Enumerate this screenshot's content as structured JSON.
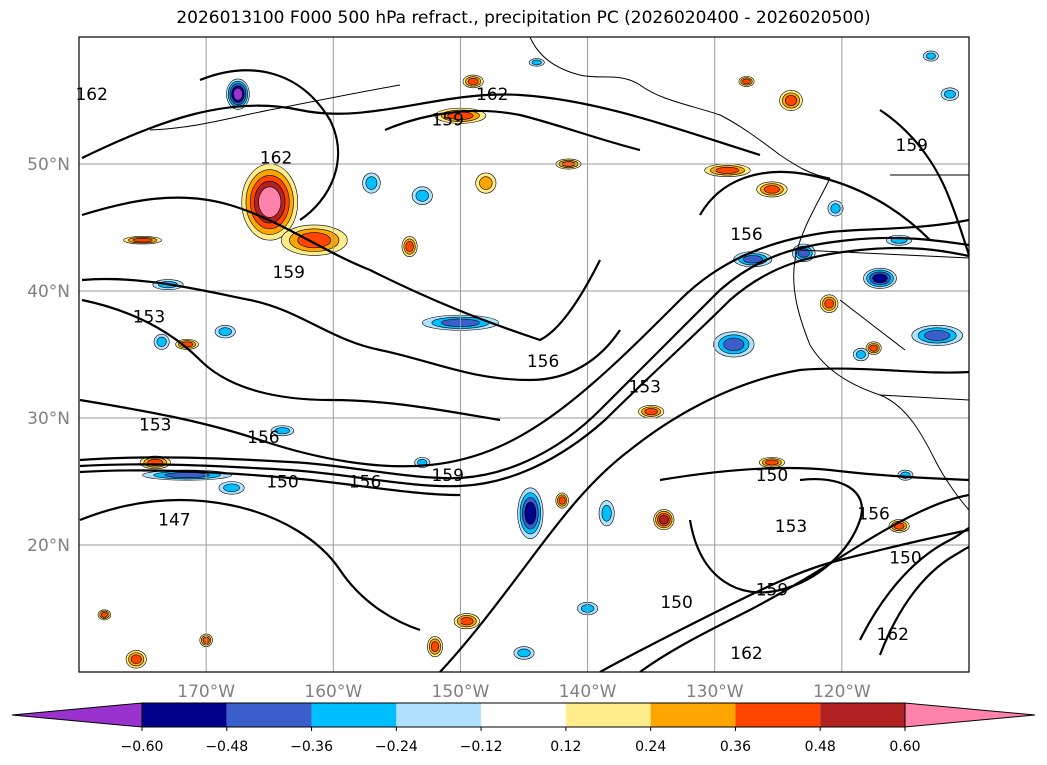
{
  "chart_data": {
    "type": "heatmap",
    "title": "2026013100 F000 500 hPa refract., precipitation PC (2026020400 - 2026020500)",
    "lat_ticks": [
      {
        "value": 50,
        "label": "50°N"
      },
      {
        "value": 40,
        "label": "40°N"
      },
      {
        "value": 30,
        "label": "30°N"
      },
      {
        "value": 20,
        "label": "20°N"
      }
    ],
    "lon_ticks": [
      {
        "value": -170,
        "label": "170°W"
      },
      {
        "value": -160,
        "label": "160°W"
      },
      {
        "value": -150,
        "label": "150°W"
      },
      {
        "value": -140,
        "label": "140°W"
      },
      {
        "value": -130,
        "label": "130°W"
      },
      {
        "value": -120,
        "label": "120°W"
      }
    ],
    "lon_range": [
      -180,
      -110
    ],
    "lat_range": [
      10,
      60
    ],
    "grid": true,
    "colorbar": {
      "bins": [
        {
          "color": "#9a32cd"
        },
        {
          "color": "#00008b"
        },
        {
          "color": "#3a5fcd"
        },
        {
          "color": "#00bfff"
        },
        {
          "color": "#b0e2ff"
        },
        {
          "color": "#ffffff"
        },
        {
          "color": "#ffec8b"
        },
        {
          "color": "#ffa500"
        },
        {
          "color": "#ff4500"
        },
        {
          "color": "#b22222"
        },
        {
          "color": "#ff82ab"
        }
      ],
      "tick_labels": [
        "−0.60",
        "−0.48",
        "−0.36",
        "−0.24",
        "−0.12",
        "0.12",
        "0.24",
        "0.36",
        "0.48",
        "0.60"
      ],
      "extend": "both"
    },
    "contour_labels": [
      {
        "text": "162",
        "lon": -179.0,
        "lat": 55.5
      },
      {
        "text": "162",
        "lon": -147.5,
        "lat": 55.5
      },
      {
        "text": "162",
        "lon": -164.5,
        "lat": 50.5
      },
      {
        "text": "159",
        "lon": -151.0,
        "lat": 53.5
      },
      {
        "text": "159",
        "lon": -114.5,
        "lat": 51.5
      },
      {
        "text": "156",
        "lon": -127.5,
        "lat": 44.5
      },
      {
        "text": "159",
        "lon": -163.5,
        "lat": 41.5
      },
      {
        "text": "153",
        "lon": -174.5,
        "lat": 38.0
      },
      {
        "text": "156",
        "lon": -143.5,
        "lat": 34.5
      },
      {
        "text": "153",
        "lon": -135.5,
        "lat": 32.5
      },
      {
        "text": "153",
        "lon": -174.0,
        "lat": 29.5
      },
      {
        "text": "156",
        "lon": -165.5,
        "lat": 28.5
      },
      {
        "text": "159",
        "lon": -151.0,
        "lat": 25.5
      },
      {
        "text": "156",
        "lon": -157.5,
        "lat": 25.0
      },
      {
        "text": "150",
        "lon": -164.0,
        "lat": 25.0
      },
      {
        "text": "147",
        "lon": -172.5,
        "lat": 22.0
      },
      {
        "text": "150",
        "lon": -125.5,
        "lat": 25.5
      },
      {
        "text": "153",
        "lon": -124.0,
        "lat": 21.5
      },
      {
        "text": "156",
        "lon": -117.5,
        "lat": 22.5
      },
      {
        "text": "150",
        "lon": -115.0,
        "lat": 19.0
      },
      {
        "text": "150",
        "lon": -133.0,
        "lat": 15.5
      },
      {
        "text": "159",
        "lon": -125.5,
        "lat": 16.5
      },
      {
        "text": "162",
        "lon": -127.5,
        "lat": 11.5
      },
      {
        "text": "162",
        "lon": -116.0,
        "lat": 13.0
      }
    ],
    "precip_cells": [
      {
        "lon": -165.0,
        "lat": 47.0,
        "rx": 2.2,
        "ry": 3.0,
        "v": 0.62
      },
      {
        "lon": -161.5,
        "lat": 44.0,
        "rx": 2.6,
        "ry": 1.2,
        "v": 0.42
      },
      {
        "lon": -167.5,
        "lat": 55.5,
        "rx": 0.9,
        "ry": 1.2,
        "v": -0.62
      },
      {
        "lon": -150.0,
        "lat": 53.8,
        "rx": 2.0,
        "ry": 0.6,
        "v": 0.42
      },
      {
        "lon": -149.0,
        "lat": 56.5,
        "rx": 0.8,
        "ry": 0.5,
        "v": 0.38
      },
      {
        "lon": -141.5,
        "lat": 50.0,
        "rx": 1.0,
        "ry": 0.4,
        "v": 0.36
      },
      {
        "lon": -148.0,
        "lat": 48.5,
        "rx": 0.8,
        "ry": 0.8,
        "v": 0.3
      },
      {
        "lon": -153.0,
        "lat": 47.5,
        "rx": 0.8,
        "ry": 0.7,
        "v": -0.36
      },
      {
        "lon": -157.0,
        "lat": 48.5,
        "rx": 0.7,
        "ry": 0.8,
        "v": -0.3
      },
      {
        "lon": -154.0,
        "lat": 43.5,
        "rx": 0.6,
        "ry": 0.8,
        "v": 0.38
      },
      {
        "lon": -150.0,
        "lat": 37.5,
        "rx": 3.0,
        "ry": 0.6,
        "v": -0.45
      },
      {
        "lon": -173.0,
        "lat": 40.5,
        "rx": 1.2,
        "ry": 0.4,
        "v": -0.36
      },
      {
        "lon": -175.0,
        "lat": 44.0,
        "rx": 1.5,
        "ry": 0.3,
        "v": 0.38
      },
      {
        "lon": -171.5,
        "lat": 35.8,
        "rx": 0.9,
        "ry": 0.4,
        "v": 0.36
      },
      {
        "lon": -173.5,
        "lat": 36.0,
        "rx": 0.6,
        "ry": 0.6,
        "v": -0.3
      },
      {
        "lon": -174.0,
        "lat": 26.5,
        "rx": 1.2,
        "ry": 0.5,
        "v": 0.42
      },
      {
        "lon": -171.5,
        "lat": 25.5,
        "rx": 3.5,
        "ry": 0.4,
        "v": -0.4
      },
      {
        "lon": -168.0,
        "lat": 24.5,
        "rx": 1.0,
        "ry": 0.5,
        "v": -0.36
      },
      {
        "lon": -168.5,
        "lat": 36.8,
        "rx": 0.8,
        "ry": 0.5,
        "v": -0.3
      },
      {
        "lon": -153.0,
        "lat": 26.5,
        "rx": 0.6,
        "ry": 0.4,
        "v": -0.3
      },
      {
        "lon": -144.5,
        "lat": 22.5,
        "rx": 1.0,
        "ry": 2.0,
        "v": -0.5
      },
      {
        "lon": -142.0,
        "lat": 23.5,
        "rx": 0.5,
        "ry": 0.6,
        "v": 0.36
      },
      {
        "lon": -138.5,
        "lat": 22.5,
        "rx": 0.6,
        "ry": 1.0,
        "v": -0.36
      },
      {
        "lon": -134.0,
        "lat": 22.0,
        "rx": 0.8,
        "ry": 0.8,
        "v": 0.48
      },
      {
        "lon": -128.5,
        "lat": 35.8,
        "rx": 1.6,
        "ry": 1.0,
        "v": -0.45
      },
      {
        "lon": -127.0,
        "lat": 42.5,
        "rx": 1.5,
        "ry": 0.6,
        "v": -0.38
      },
      {
        "lon": -123.0,
        "lat": 43.0,
        "rx": 0.9,
        "ry": 0.7,
        "v": -0.45
      },
      {
        "lon": -124.0,
        "lat": 55.0,
        "rx": 0.9,
        "ry": 0.8,
        "v": 0.4
      },
      {
        "lon": -127.5,
        "lat": 56.5,
        "rx": 0.6,
        "ry": 0.4,
        "v": 0.36
      },
      {
        "lon": -129.0,
        "lat": 49.5,
        "rx": 1.8,
        "ry": 0.5,
        "v": 0.4
      },
      {
        "lon": -125.5,
        "lat": 48.0,
        "rx": 1.2,
        "ry": 0.6,
        "v": 0.38
      },
      {
        "lon": -117.0,
        "lat": 41.0,
        "rx": 1.3,
        "ry": 0.8,
        "v": -0.55
      },
      {
        "lon": -112.5,
        "lat": 36.5,
        "rx": 2.0,
        "ry": 0.8,
        "v": -0.45
      },
      {
        "lon": -121.0,
        "lat": 39.0,
        "rx": 0.7,
        "ry": 0.7,
        "v": 0.36
      },
      {
        "lon": -117.5,
        "lat": 35.5,
        "rx": 0.6,
        "ry": 0.5,
        "v": 0.36
      },
      {
        "lon": -111.5,
        "lat": 55.5,
        "rx": 0.7,
        "ry": 0.5,
        "v": -0.3
      },
      {
        "lon": -125.5,
        "lat": 26.5,
        "rx": 1.0,
        "ry": 0.4,
        "v": 0.36
      },
      {
        "lon": -115.0,
        "lat": 25.5,
        "rx": 0.6,
        "ry": 0.4,
        "v": -0.3
      },
      {
        "lon": -115.5,
        "lat": 21.5,
        "rx": 0.8,
        "ry": 0.5,
        "v": 0.4
      },
      {
        "lon": -149.5,
        "lat": 14.0,
        "rx": 1.0,
        "ry": 0.6,
        "v": 0.4
      },
      {
        "lon": -152.0,
        "lat": 12.0,
        "rx": 0.6,
        "ry": 0.8,
        "v": 0.4
      },
      {
        "lon": -145.0,
        "lat": 11.5,
        "rx": 0.8,
        "ry": 0.5,
        "v": -0.3
      },
      {
        "lon": -175.5,
        "lat": 11.0,
        "rx": 0.8,
        "ry": 0.7,
        "v": 0.42
      },
      {
        "lon": -178.0,
        "lat": 14.5,
        "rx": 0.5,
        "ry": 0.4,
        "v": 0.36
      },
      {
        "lon": -170.0,
        "lat": 12.5,
        "rx": 0.5,
        "ry": 0.5,
        "v": 0.36
      },
      {
        "lon": -140.0,
        "lat": 15.0,
        "rx": 0.8,
        "ry": 0.5,
        "v": -0.3
      },
      {
        "lon": -135.0,
        "lat": 30.5,
        "rx": 1.0,
        "ry": 0.5,
        "v": 0.36
      },
      {
        "lon": -118.5,
        "lat": 35.0,
        "rx": 0.6,
        "ry": 0.5,
        "v": -0.3
      },
      {
        "lon": -115.5,
        "lat": 44.0,
        "rx": 1.0,
        "ry": 0.4,
        "v": -0.3
      },
      {
        "lon": -113.0,
        "lat": 58.5,
        "rx": 0.6,
        "ry": 0.4,
        "v": -0.3
      },
      {
        "lon": -144.0,
        "lat": 58.0,
        "rx": 0.6,
        "ry": 0.3,
        "v": -0.3
      },
      {
        "lon": -164.0,
        "lat": 29.0,
        "rx": 0.9,
        "ry": 0.4,
        "v": -0.3
      },
      {
        "lon": -120.5,
        "lat": 46.5,
        "rx": 0.6,
        "ry": 0.6,
        "v": -0.36
      }
    ]
  }
}
